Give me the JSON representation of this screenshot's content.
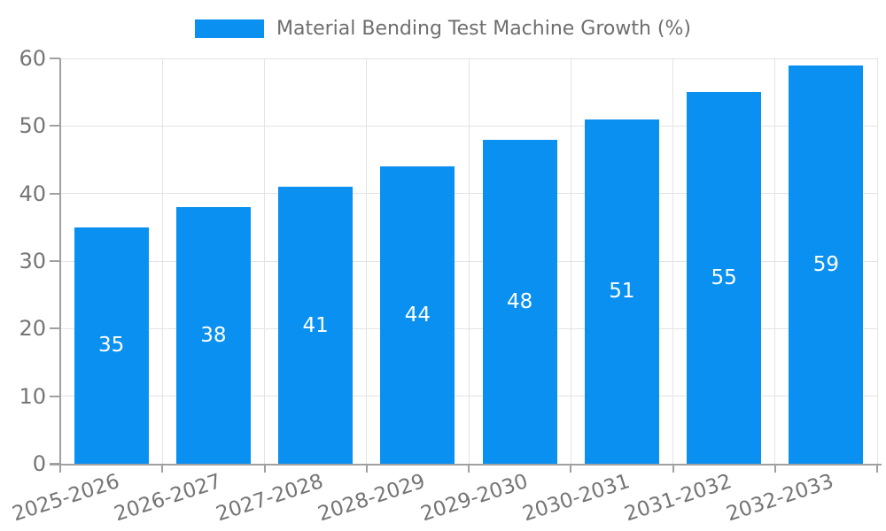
{
  "chart_data": {
    "type": "bar",
    "title": "Material Bending Test Machine Growth (%)",
    "categories": [
      "2025-2026",
      "2026-2027",
      "2027-2028",
      "2028-2029",
      "2029-2030",
      "2030-2031",
      "2031-2032",
      "2032-2033"
    ],
    "values": [
      35,
      38,
      41,
      44,
      48,
      51,
      55,
      59
    ],
    "series": [
      {
        "name": "Material Bending Test Machine Growth (%)",
        "values": [
          35,
          38,
          41,
          44,
          48,
          51,
          55,
          59
        ]
      }
    ],
    "xlabel": "",
    "ylabel": "",
    "ylim": [
      0,
      60
    ],
    "yticks": [
      0,
      10,
      20,
      30,
      40,
      50,
      60
    ],
    "grid": true,
    "legend_position": "top",
    "bar_labels_shown": true,
    "colors": {
      "bar": "#0a90f0",
      "bar_label": "#ffffff",
      "axis_text": "#757575",
      "legend_text": "#6e6e6e",
      "gridline": "#e3e3e3",
      "axis_line": "#a0a0a0",
      "background": "#ffffff"
    }
  }
}
